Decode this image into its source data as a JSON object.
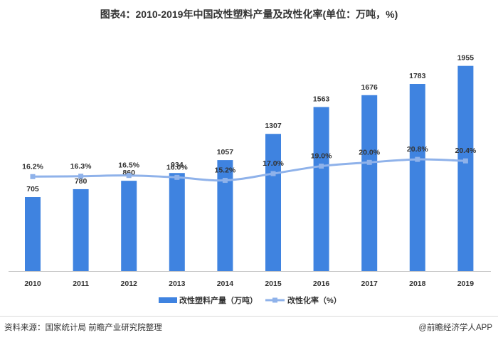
{
  "title": "图表4：2010-2019年中国改性塑料产量及改性化率(单位：万吨，%)",
  "footer": {
    "source": "资料来源：国家统计局 前瞻产业研究院整理",
    "brand": "@前瞻经济学人APP"
  },
  "colors": {
    "bar": "#3f83e0",
    "line": "#8fb2ea",
    "text": "#333333"
  },
  "chart_data": {
    "type": "bar+line",
    "categories": [
      "2010",
      "2011",
      "2012",
      "2013",
      "2014",
      "2015",
      "2016",
      "2017",
      "2018",
      "2019"
    ],
    "series": [
      {
        "name": "改性塑料产量（万吨）",
        "type": "bar",
        "values": [
          705,
          780,
          860,
          934,
          1057,
          1307,
          1563,
          1676,
          1783,
          1955
        ],
        "labels": [
          "705",
          "780",
          "860",
          "934",
          "1057",
          "1307",
          "1563",
          "1676",
          "1783",
          "1955"
        ]
      },
      {
        "name": "改性化率（%）",
        "type": "line",
        "values": [
          16.2,
          16.3,
          16.5,
          16.0,
          15.2,
          17.0,
          19.0,
          20.0,
          20.8,
          20.4
        ],
        "labels": [
          "16.2%",
          "16.3%",
          "16.5%",
          "16.0%",
          "15.2%",
          "17.0%",
          "19.0%",
          "20.0%",
          "20.8%",
          "20.4%"
        ]
      }
    ],
    "legend_position": "bottom",
    "grid": false
  }
}
